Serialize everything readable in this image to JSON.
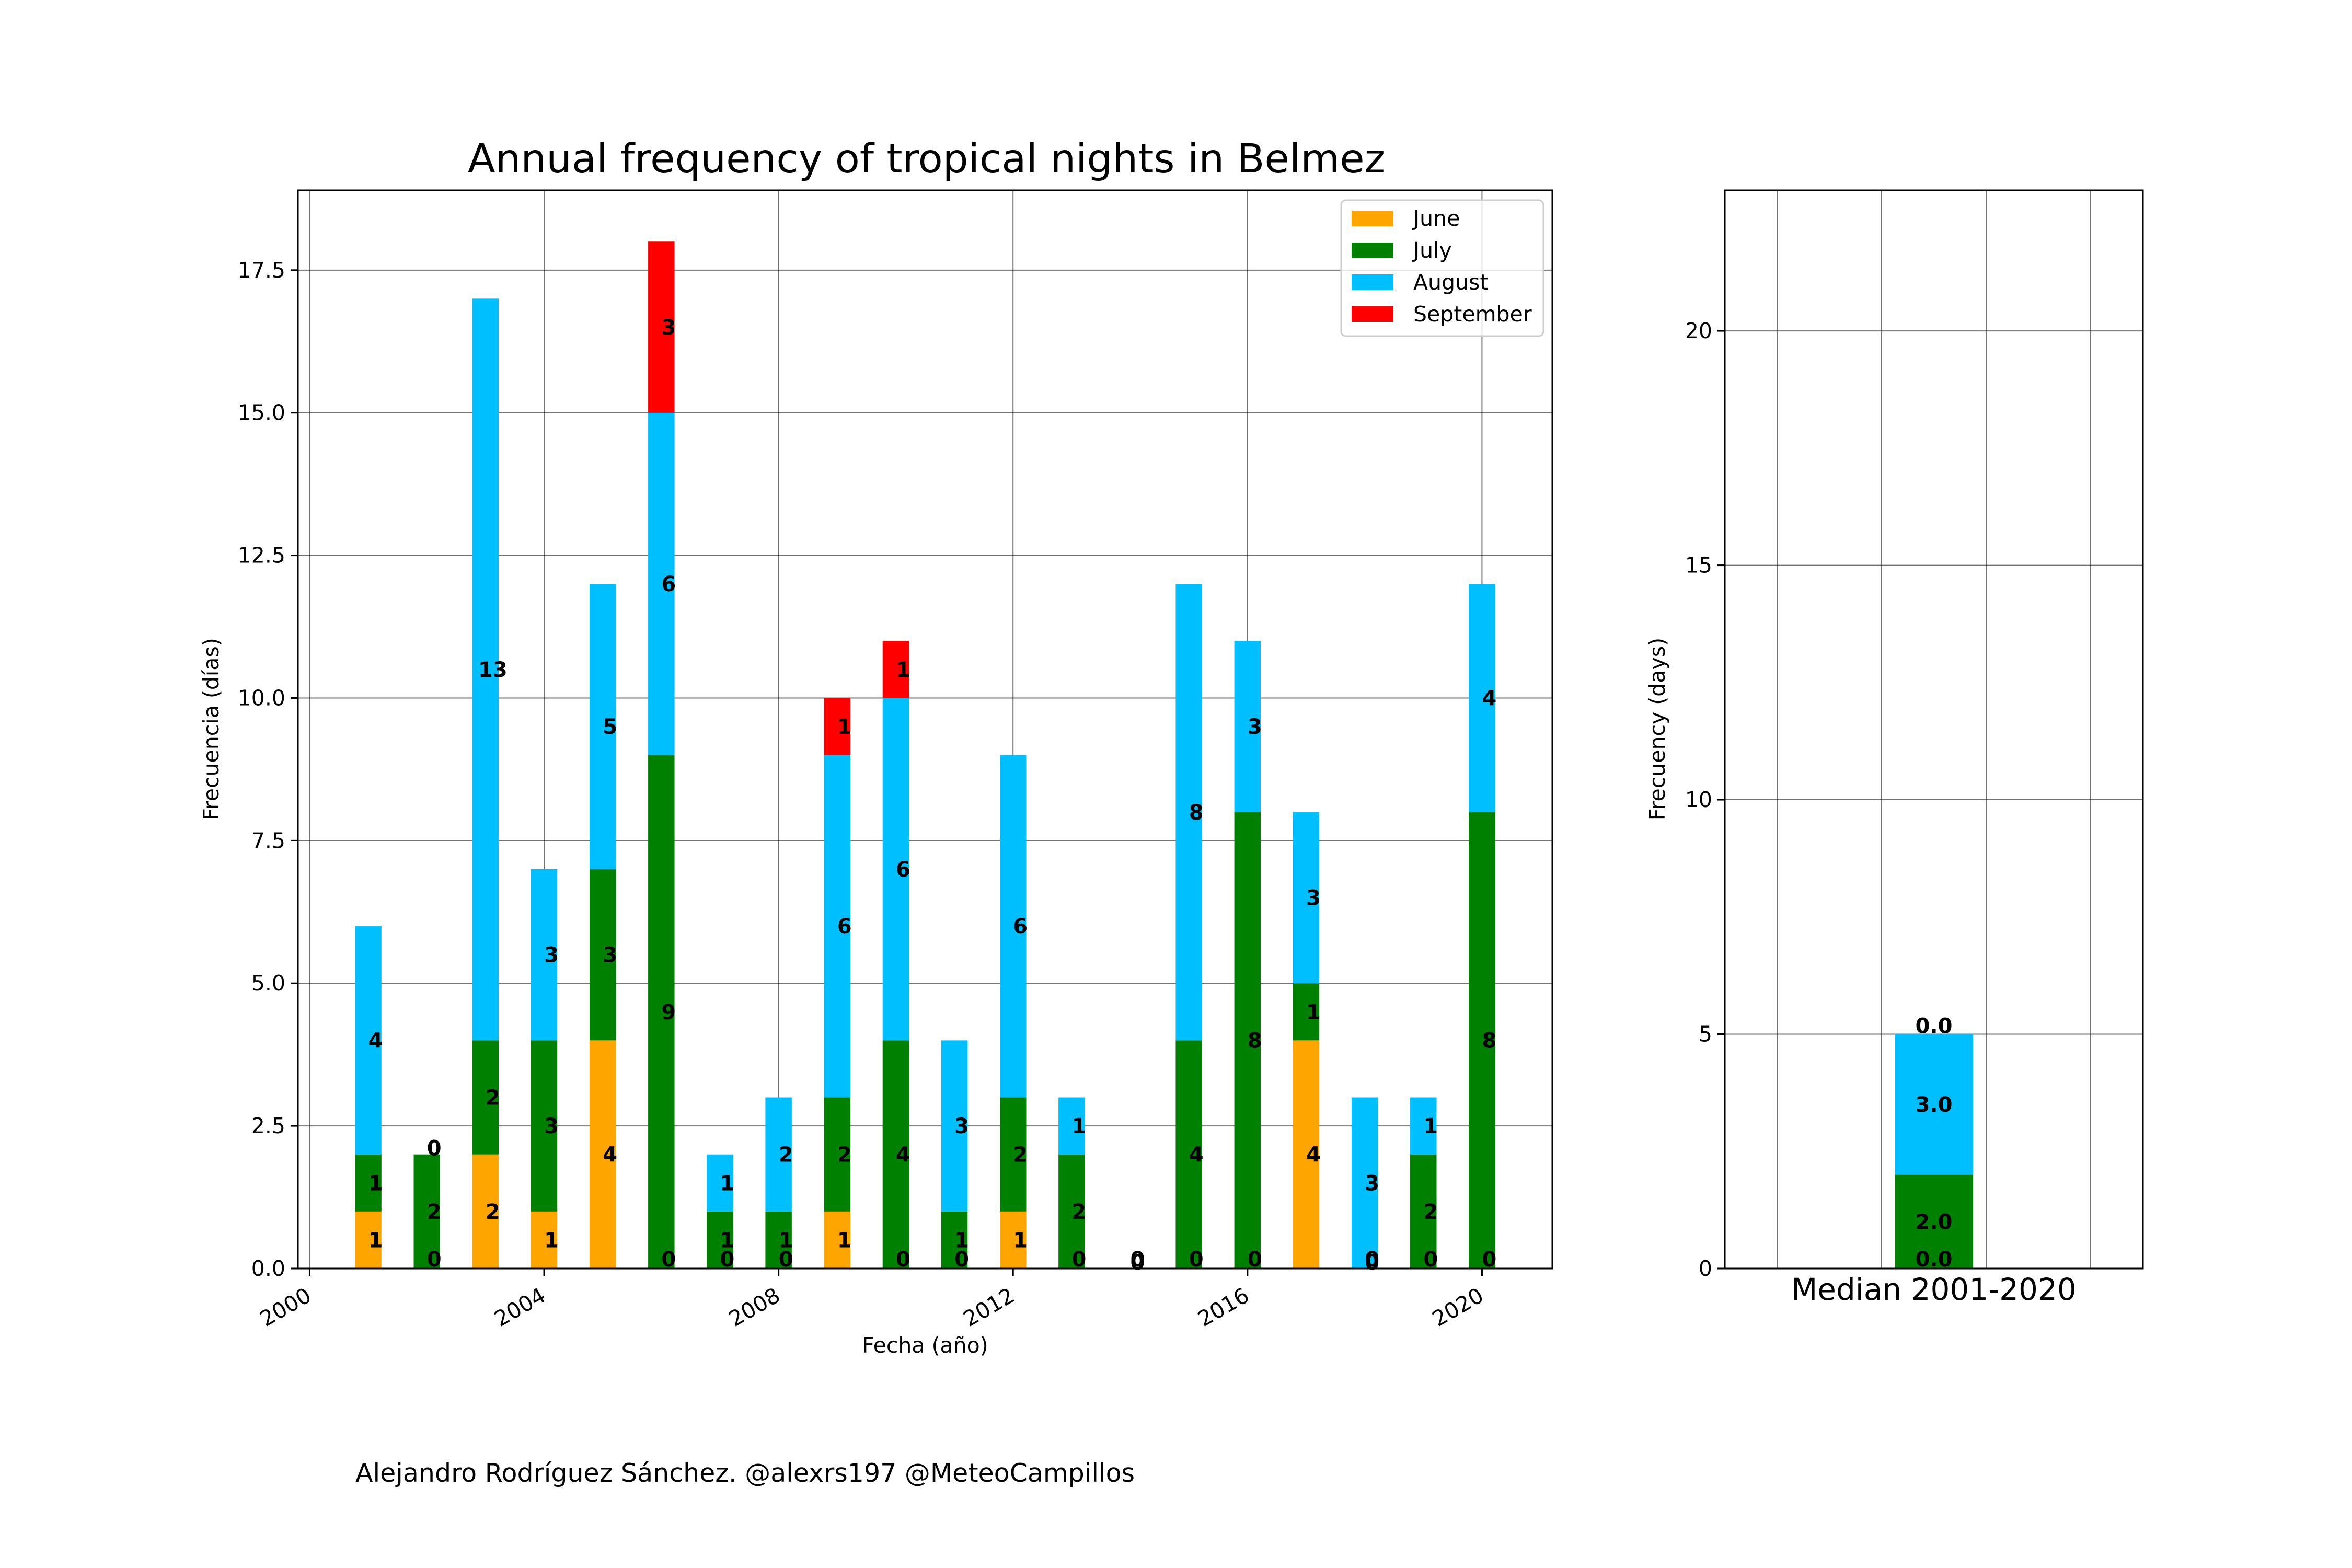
{
  "charts": {
    "main": {
      "title": "Annual frequency of tropical nights in Belmez",
      "xlabel": "Fecha (año)",
      "ylabel": "Frecuencia (días)"
    },
    "median": {
      "ylabel": "Frecuency (days)",
      "xlabel": "Median 2001-2020"
    }
  },
  "credit": "Alejandro Rodríguez Sánchez. @alexrs197 @MeteoCampillos",
  "colors": {
    "June": "#ffa500",
    "July": "#008000",
    "August": "#00bfff",
    "September": "#ff0000"
  },
  "chart_data": [
    {
      "type": "bar",
      "stacked": true,
      "title": "Annual frequency of tropical nights in Belmez",
      "xlabel": "Fecha (año)",
      "ylabel": "Frecuencia (días)",
      "x": [
        2001,
        2002,
        2003,
        2004,
        2005,
        2006,
        2007,
        2008,
        2009,
        2010,
        2011,
        2012,
        2013,
        2014,
        2015,
        2016,
        2017,
        2018,
        2019,
        2020
      ],
      "series": [
        {
          "name": "June",
          "values": [
            1,
            0,
            2,
            1,
            4,
            0,
            0,
            0,
            1,
            0,
            0,
            1,
            0,
            0,
            0,
            0,
            4,
            0,
            0,
            0
          ]
        },
        {
          "name": "July",
          "values": [
            1,
            2,
            2,
            3,
            3,
            9,
            1,
            1,
            2,
            4,
            1,
            2,
            2,
            0,
            4,
            8,
            1,
            0,
            2,
            8
          ]
        },
        {
          "name": "August",
          "values": [
            4,
            0,
            13,
            3,
            5,
            6,
            1,
            2,
            6,
            6,
            3,
            6,
            1,
            0,
            8,
            3,
            3,
            3,
            1,
            4
          ]
        },
        {
          "name": "September",
          "values": [
            0,
            0,
            0,
            0,
            0,
            3,
            0,
            0,
            1,
            1,
            0,
            0,
            0,
            0,
            0,
            0,
            0,
            0,
            0,
            0
          ]
        }
      ],
      "xticks": [
        "2000",
        "2004",
        "2008",
        "2012",
        "2016",
        "2020"
      ],
      "yticks": [
        "0.0",
        "2.5",
        "5.0",
        "7.5",
        "10.0",
        "12.5",
        "15.0",
        "17.5"
      ],
      "xlim": [
        1999.8,
        2021.2
      ],
      "ylim": [
        0,
        18.9
      ],
      "grid": true,
      "legend": "top-right"
    },
    {
      "type": "bar",
      "stacked": true,
      "xlabel": "Median 2001-2020",
      "ylabel": "Frecuency (days)",
      "categories": [
        "Median 2001-2020"
      ],
      "series": [
        {
          "name": "June",
          "values": [
            0.0
          ]
        },
        {
          "name": "July",
          "values": [
            2.0
          ]
        },
        {
          "name": "August",
          "values": [
            3.0
          ]
        },
        {
          "name": "September",
          "values": [
            0.0
          ]
        }
      ],
      "labels": [
        "0.0",
        "2.0",
        "3.0",
        "0.0"
      ],
      "yticks": [
        "0",
        "5",
        "10",
        "15",
        "20"
      ],
      "ylim": [
        0,
        23
      ],
      "grid": true
    }
  ]
}
